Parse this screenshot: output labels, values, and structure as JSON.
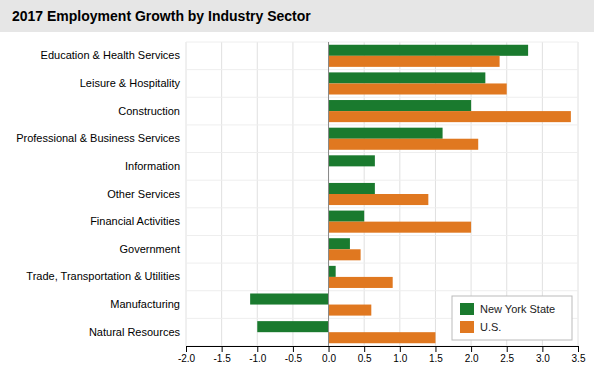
{
  "chart_data": {
    "type": "bar",
    "orientation": "horizontal",
    "title": "2017 Employment Growth by Industry Sector",
    "categories": [
      "Education & Health Services",
      "Leisure & Hospitality",
      "Construction",
      "Professional & Business Services",
      "Information",
      "Other Services",
      "Financial Activities",
      "Government",
      "Trade, Transportation & Utilities",
      "Manufacturing",
      "Natural Resources"
    ],
    "series": [
      {
        "name": "New York State",
        "color": "#1a7a2e",
        "values": [
          2.8,
          2.2,
          2.0,
          1.6,
          0.65,
          0.65,
          0.5,
          0.3,
          0.1,
          -1.1,
          -1.0
        ]
      },
      {
        "name": "U.S.",
        "color": "#e07820",
        "values": [
          2.4,
          2.5,
          3.4,
          2.1,
          0.0,
          1.4,
          2.0,
          0.45,
          0.9,
          0.6,
          1.5
        ]
      }
    ],
    "xlim": [
      -2.0,
      3.5
    ],
    "xticks": [
      {
        "value": -2.0,
        "label": "-2.0"
      },
      -1.5,
      {
        "value": -1.0,
        "label": "-1.0"
      },
      -0.5,
      {
        "value": 0.0,
        "label": "0.0"
      },
      0.5,
      {
        "value": 1.0,
        "label": "1.0"
      },
      1.5,
      {
        "value": 2.0,
        "label": "2.0"
      },
      2.5,
      {
        "value": 3.0,
        "label": "3.0"
      },
      3.5
    ],
    "grid": true,
    "legend": "lower right"
  }
}
